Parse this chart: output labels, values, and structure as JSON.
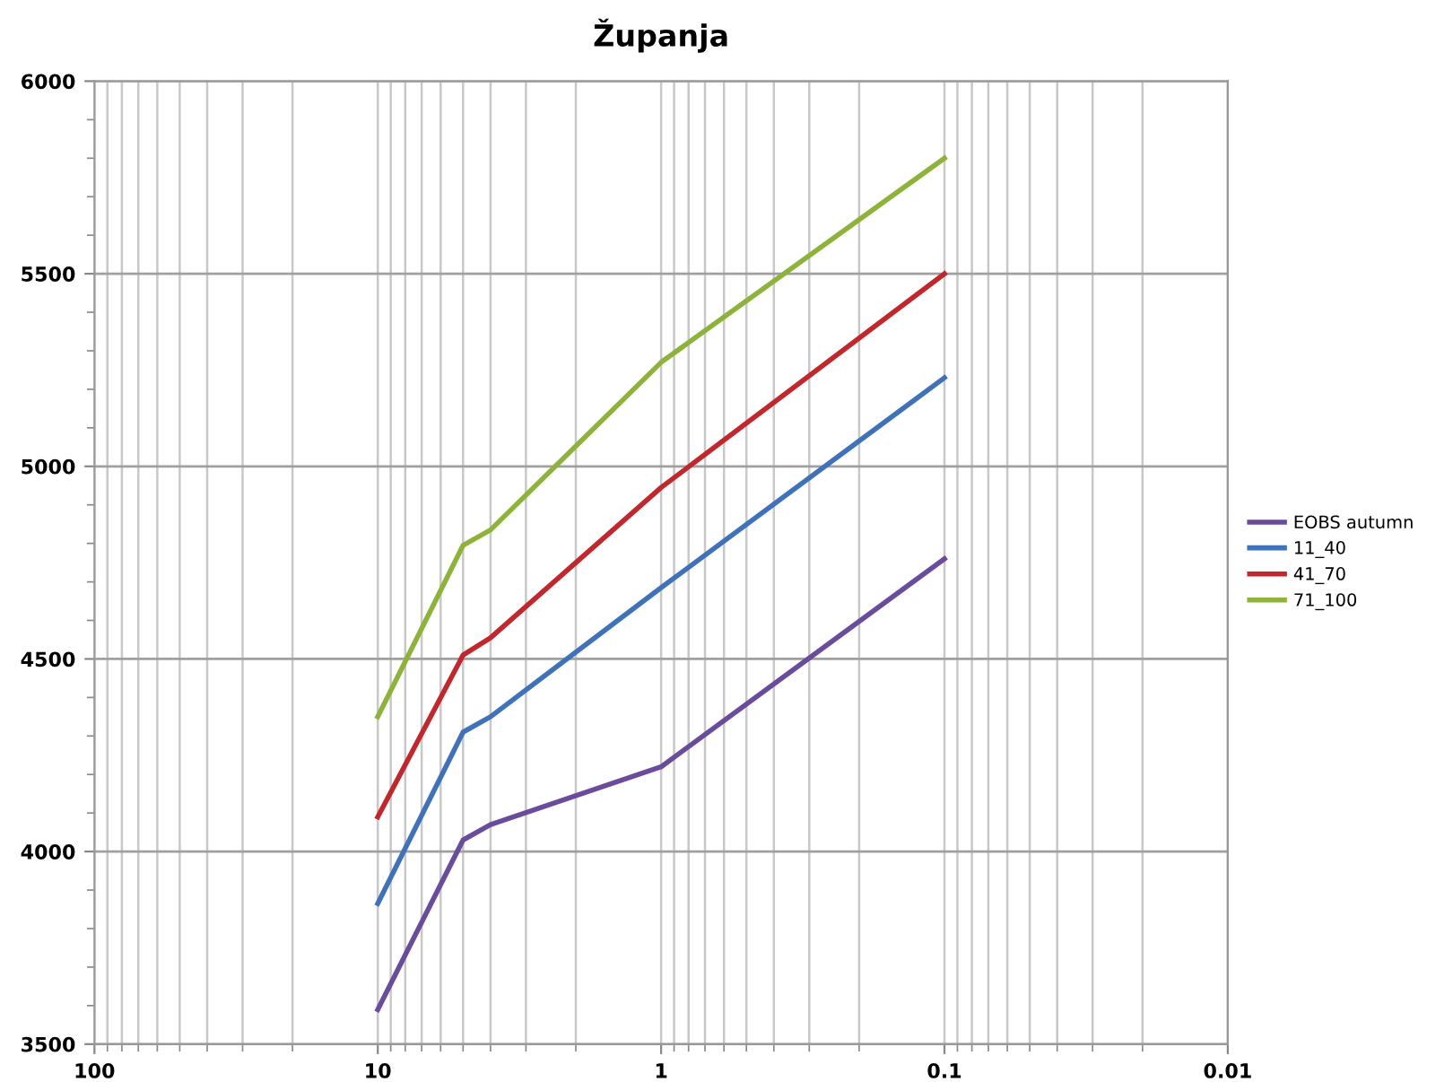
{
  "chart_data": {
    "type": "line",
    "title": "Županja",
    "log": "x",
    "grid": true,
    "legend": "right",
    "marker": "none",
    "line_style": "solid",
    "x": [
      10,
      5,
      4,
      1,
      0.1
    ],
    "xlim": [
      100,
      0.01
    ],
    "xticks": [
      100,
      10,
      1,
      0.1,
      0.01,
      {
        "value": 90,
        "label": null
      },
      {
        "value": 80,
        "label": null
      },
      {
        "value": 70,
        "label": null
      },
      {
        "value": 60,
        "label": null
      },
      {
        "value": 50,
        "label": null
      },
      {
        "value": 40,
        "label": null
      },
      {
        "value": 30,
        "label": null
      },
      {
        "value": 20,
        "label": null
      },
      {
        "value": 9,
        "label": null
      },
      {
        "value": 8,
        "label": null
      },
      {
        "value": 7,
        "label": null
      },
      {
        "value": 6,
        "label": null
      },
      {
        "value": 5,
        "label": null
      },
      {
        "value": 4,
        "label": null
      },
      {
        "value": 3,
        "label": null
      },
      {
        "value": 2,
        "label": null
      },
      {
        "value": 0.9,
        "label": null
      },
      {
        "value": 0.8,
        "label": null
      },
      {
        "value": 0.7,
        "label": null
      },
      {
        "value": 0.6,
        "label": null
      },
      {
        "value": 0.5,
        "label": null
      },
      {
        "value": 0.4,
        "label": null
      },
      {
        "value": 0.3,
        "label": null
      },
      {
        "value": 0.2,
        "label": null
      },
      {
        "value": 0.09,
        "label": null
      },
      {
        "value": 0.08,
        "label": null
      },
      {
        "value": 0.07,
        "label": null
      },
      {
        "value": 0.06,
        "label": null
      },
      {
        "value": 0.05,
        "label": null
      },
      {
        "value": 0.04,
        "label": null
      },
      {
        "value": 0.03,
        "label": null
      },
      {
        "value": 0.02,
        "label": null
      }
    ],
    "ylim": [
      3500,
      6000
    ],
    "yticks": [
      3500,
      4000,
      4500,
      5000,
      5500,
      6000,
      {
        "value": 3600,
        "label": null
      },
      {
        "value": 3700,
        "label": null
      },
      {
        "value": 3800,
        "label": null
      },
      {
        "value": 3900,
        "label": null
      },
      {
        "value": 4100,
        "label": null
      },
      {
        "value": 4200,
        "label": null
      },
      {
        "value": 4300,
        "label": null
      },
      {
        "value": 4400,
        "label": null
      },
      {
        "value": 4600,
        "label": null
      },
      {
        "value": 4700,
        "label": null
      },
      {
        "value": 4800,
        "label": null
      },
      {
        "value": 4900,
        "label": null
      },
      {
        "value": 5100,
        "label": null
      },
      {
        "value": 5200,
        "label": null
      },
      {
        "value": 5300,
        "label": null
      },
      {
        "value": 5400,
        "label": null
      },
      {
        "value": 5600,
        "label": null
      },
      {
        "value": 5700,
        "label": null
      },
      {
        "value": 5800,
        "label": null
      },
      {
        "value": 5900,
        "label": null
      }
    ],
    "series": [
      {
        "name": "EOBS autumn",
        "color": "#6a4c9c",
        "values": [
          3590,
          4030,
          4070,
          4220,
          4760
        ]
      },
      {
        "name": "11_40",
        "color": "#3f72b8",
        "values": [
          3865,
          4310,
          4350,
          4685,
          5230
        ]
      },
      {
        "name": "41_70",
        "color": "#c0282d",
        "values": [
          4090,
          4510,
          4555,
          4945,
          5500
        ]
      },
      {
        "name": "71_100",
        "color": "#8db33a",
        "values": [
          4350,
          4795,
          4835,
          5270,
          5800
        ]
      }
    ]
  }
}
